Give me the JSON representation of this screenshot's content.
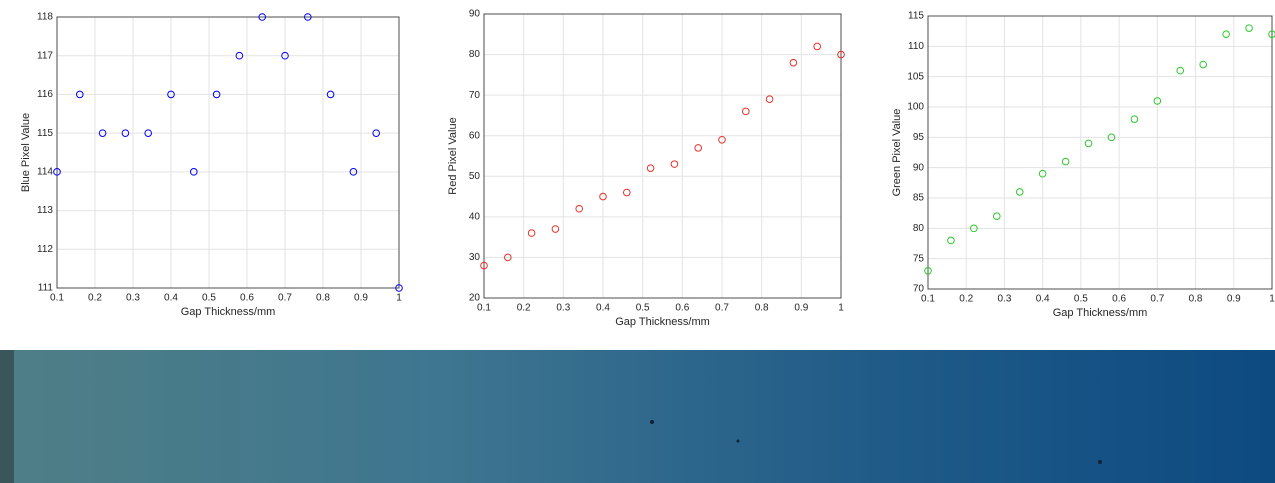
{
  "chart_data": [
    {
      "type": "scatter",
      "xlabel": "Gap Thickness/mm",
      "ylabel": "Blue Pixel Value",
      "color": "#0000ff",
      "grid": true,
      "x": [
        0.1,
        0.16,
        0.22,
        0.28,
        0.34,
        0.4,
        0.46,
        0.52,
        0.58,
        0.64,
        0.7,
        0.76,
        0.82,
        0.88,
        0.94,
        1
      ],
      "values": [
        114,
        116,
        115,
        115,
        115,
        116,
        114,
        116,
        117,
        118,
        117,
        118,
        116,
        114,
        115,
        111
      ],
      "xlim": [
        0.1,
        1
      ],
      "xticks": [
        0.1,
        0.2,
        0.3,
        0.4,
        0.5,
        0.6,
        0.7,
        0.8,
        0.9,
        1
      ],
      "ylim": [
        111,
        118
      ],
      "yticks": [
        111,
        112,
        113,
        114,
        115,
        116,
        117,
        118
      ]
    },
    {
      "type": "scatter",
      "xlabel": "Gap Thickness/mm",
      "ylabel": "Red Pixel Value",
      "color": "#e8322a",
      "grid": true,
      "x": [
        0.1,
        0.16,
        0.22,
        0.28,
        0.34,
        0.4,
        0.46,
        0.52,
        0.58,
        0.64,
        0.7,
        0.76,
        0.82,
        0.88,
        0.94,
        1
      ],
      "values": [
        28,
        30,
        36,
        37,
        42,
        45,
        46,
        52,
        53,
        57,
        59,
        66,
        69,
        78,
        82,
        80
      ],
      "xlim": [
        0.1,
        1
      ],
      "xticks": [
        0.1,
        0.2,
        0.3,
        0.4,
        0.5,
        0.6,
        0.7,
        0.8,
        0.9,
        1
      ],
      "ylim": [
        20,
        90
      ],
      "yticks": [
        20,
        30,
        40,
        50,
        60,
        70,
        80,
        90
      ]
    },
    {
      "type": "scatter",
      "xlabel": "Gap Thickness/mm",
      "ylabel": "Green Pixel Value",
      "color": "#2ec82e",
      "grid": true,
      "x": [
        0.1,
        0.16,
        0.22,
        0.28,
        0.34,
        0.4,
        0.46,
        0.52,
        0.58,
        0.64,
        0.7,
        0.76,
        0.82,
        0.88,
        0.94,
        1
      ],
      "values": [
        73,
        78,
        80,
        82,
        86,
        89,
        91,
        94,
        95,
        98,
        101,
        106,
        107,
        112,
        113,
        112
      ],
      "xlim": [
        0.1,
        1
      ],
      "xticks": [
        0.1,
        0.2,
        0.3,
        0.4,
        0.5,
        0.6,
        0.7,
        0.8,
        0.9,
        1
      ],
      "ylim": [
        70,
        115
      ],
      "yticks": [
        70,
        75,
        80,
        85,
        90,
        95,
        100,
        105,
        110,
        115
      ]
    }
  ]
}
